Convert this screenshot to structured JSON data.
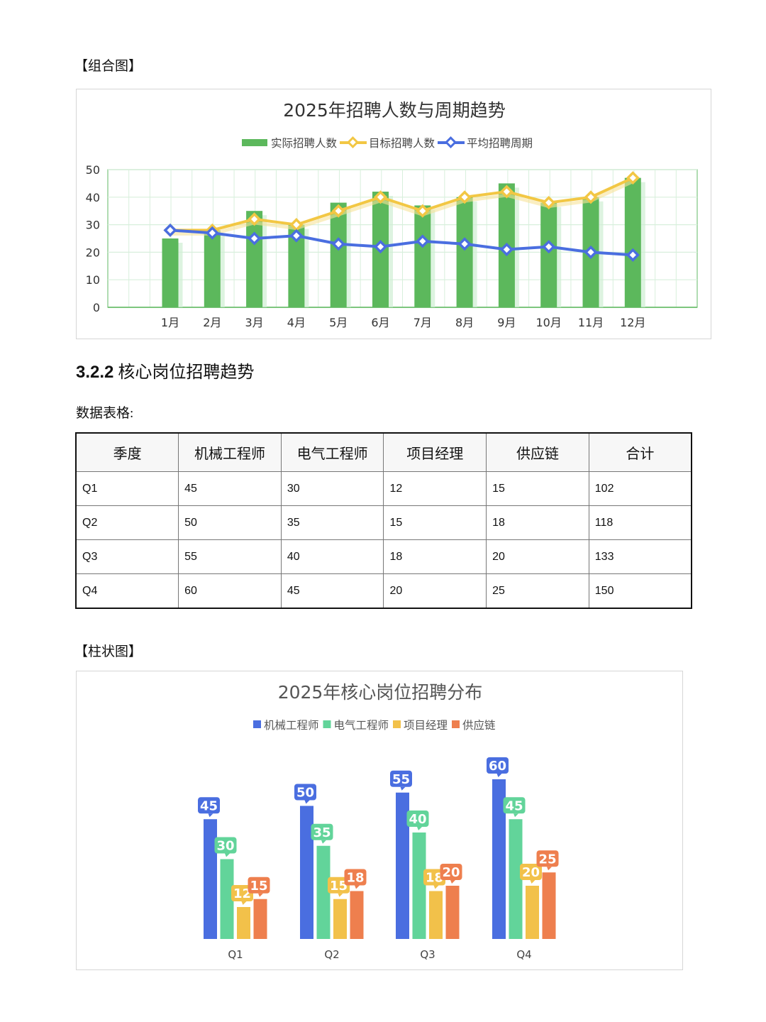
{
  "labels": {
    "combo_label": "【组合图】",
    "section_number": "3.2.2",
    "section_title": "核心岗位招聘趋势",
    "table_label": "数据表格:",
    "bar_label": "【柱状图】"
  },
  "table": {
    "headers": [
      "季度",
      "机械工程师",
      "电气工程师",
      "项目经理",
      "供应链",
      "合计"
    ],
    "rows": [
      [
        "Q1",
        "45",
        "30",
        "12",
        "15",
        "102"
      ],
      [
        "Q2",
        "50",
        "35",
        "15",
        "18",
        "118"
      ],
      [
        "Q3",
        "55",
        "40",
        "18",
        "20",
        "133"
      ],
      [
        "Q4",
        "60",
        "45",
        "20",
        "25",
        "150"
      ]
    ]
  },
  "chart_data": [
    {
      "type": "bar+line",
      "title": "2025年招聘人数与周期趋势",
      "categories": [
        "1月",
        "2月",
        "3月",
        "4月",
        "5月",
        "6月",
        "7月",
        "8月",
        "9月",
        "10月",
        "11月",
        "12月"
      ],
      "series": [
        {
          "name": "实际招聘人数",
          "type": "bar",
          "color": "#5cb85c",
          "values": [
            25,
            28,
            35,
            30,
            38,
            42,
            37,
            40,
            45,
            38,
            40,
            47
          ]
        },
        {
          "name": "目标招聘人数",
          "type": "line",
          "color": "#f2c744",
          "values": [
            28,
            28,
            32,
            30,
            35,
            40,
            35,
            40,
            42,
            38,
            40,
            47
          ]
        },
        {
          "name": "平均招聘周期",
          "type": "line",
          "color": "#4a6ee0",
          "values": [
            28,
            27,
            25,
            26,
            23,
            22,
            24,
            23,
            21,
            22,
            20,
            19
          ]
        }
      ],
      "yticks": [
        0,
        10,
        20,
        30,
        40,
        50
      ],
      "ylim": [
        0,
        50
      ],
      "grid": true,
      "legend_position": "top"
    },
    {
      "type": "bar",
      "title": "2025年核心岗位招聘分布",
      "categories": [
        "Q1",
        "Q2",
        "Q3",
        "Q4"
      ],
      "series": [
        {
          "name": "机械工程师",
          "color": "#4a6ee0",
          "values": [
            45,
            50,
            55,
            60
          ]
        },
        {
          "name": "电气工程师",
          "color": "#62d49a",
          "values": [
            30,
            35,
            40,
            45
          ]
        },
        {
          "name": "项目经理",
          "color": "#f2c14a",
          "values": [
            12,
            15,
            18,
            20
          ]
        },
        {
          "name": "供应链",
          "color": "#ee7f4e",
          "values": [
            15,
            18,
            20,
            25
          ]
        }
      ],
      "data_labels": true,
      "grid": false,
      "legend_position": "top"
    }
  ]
}
